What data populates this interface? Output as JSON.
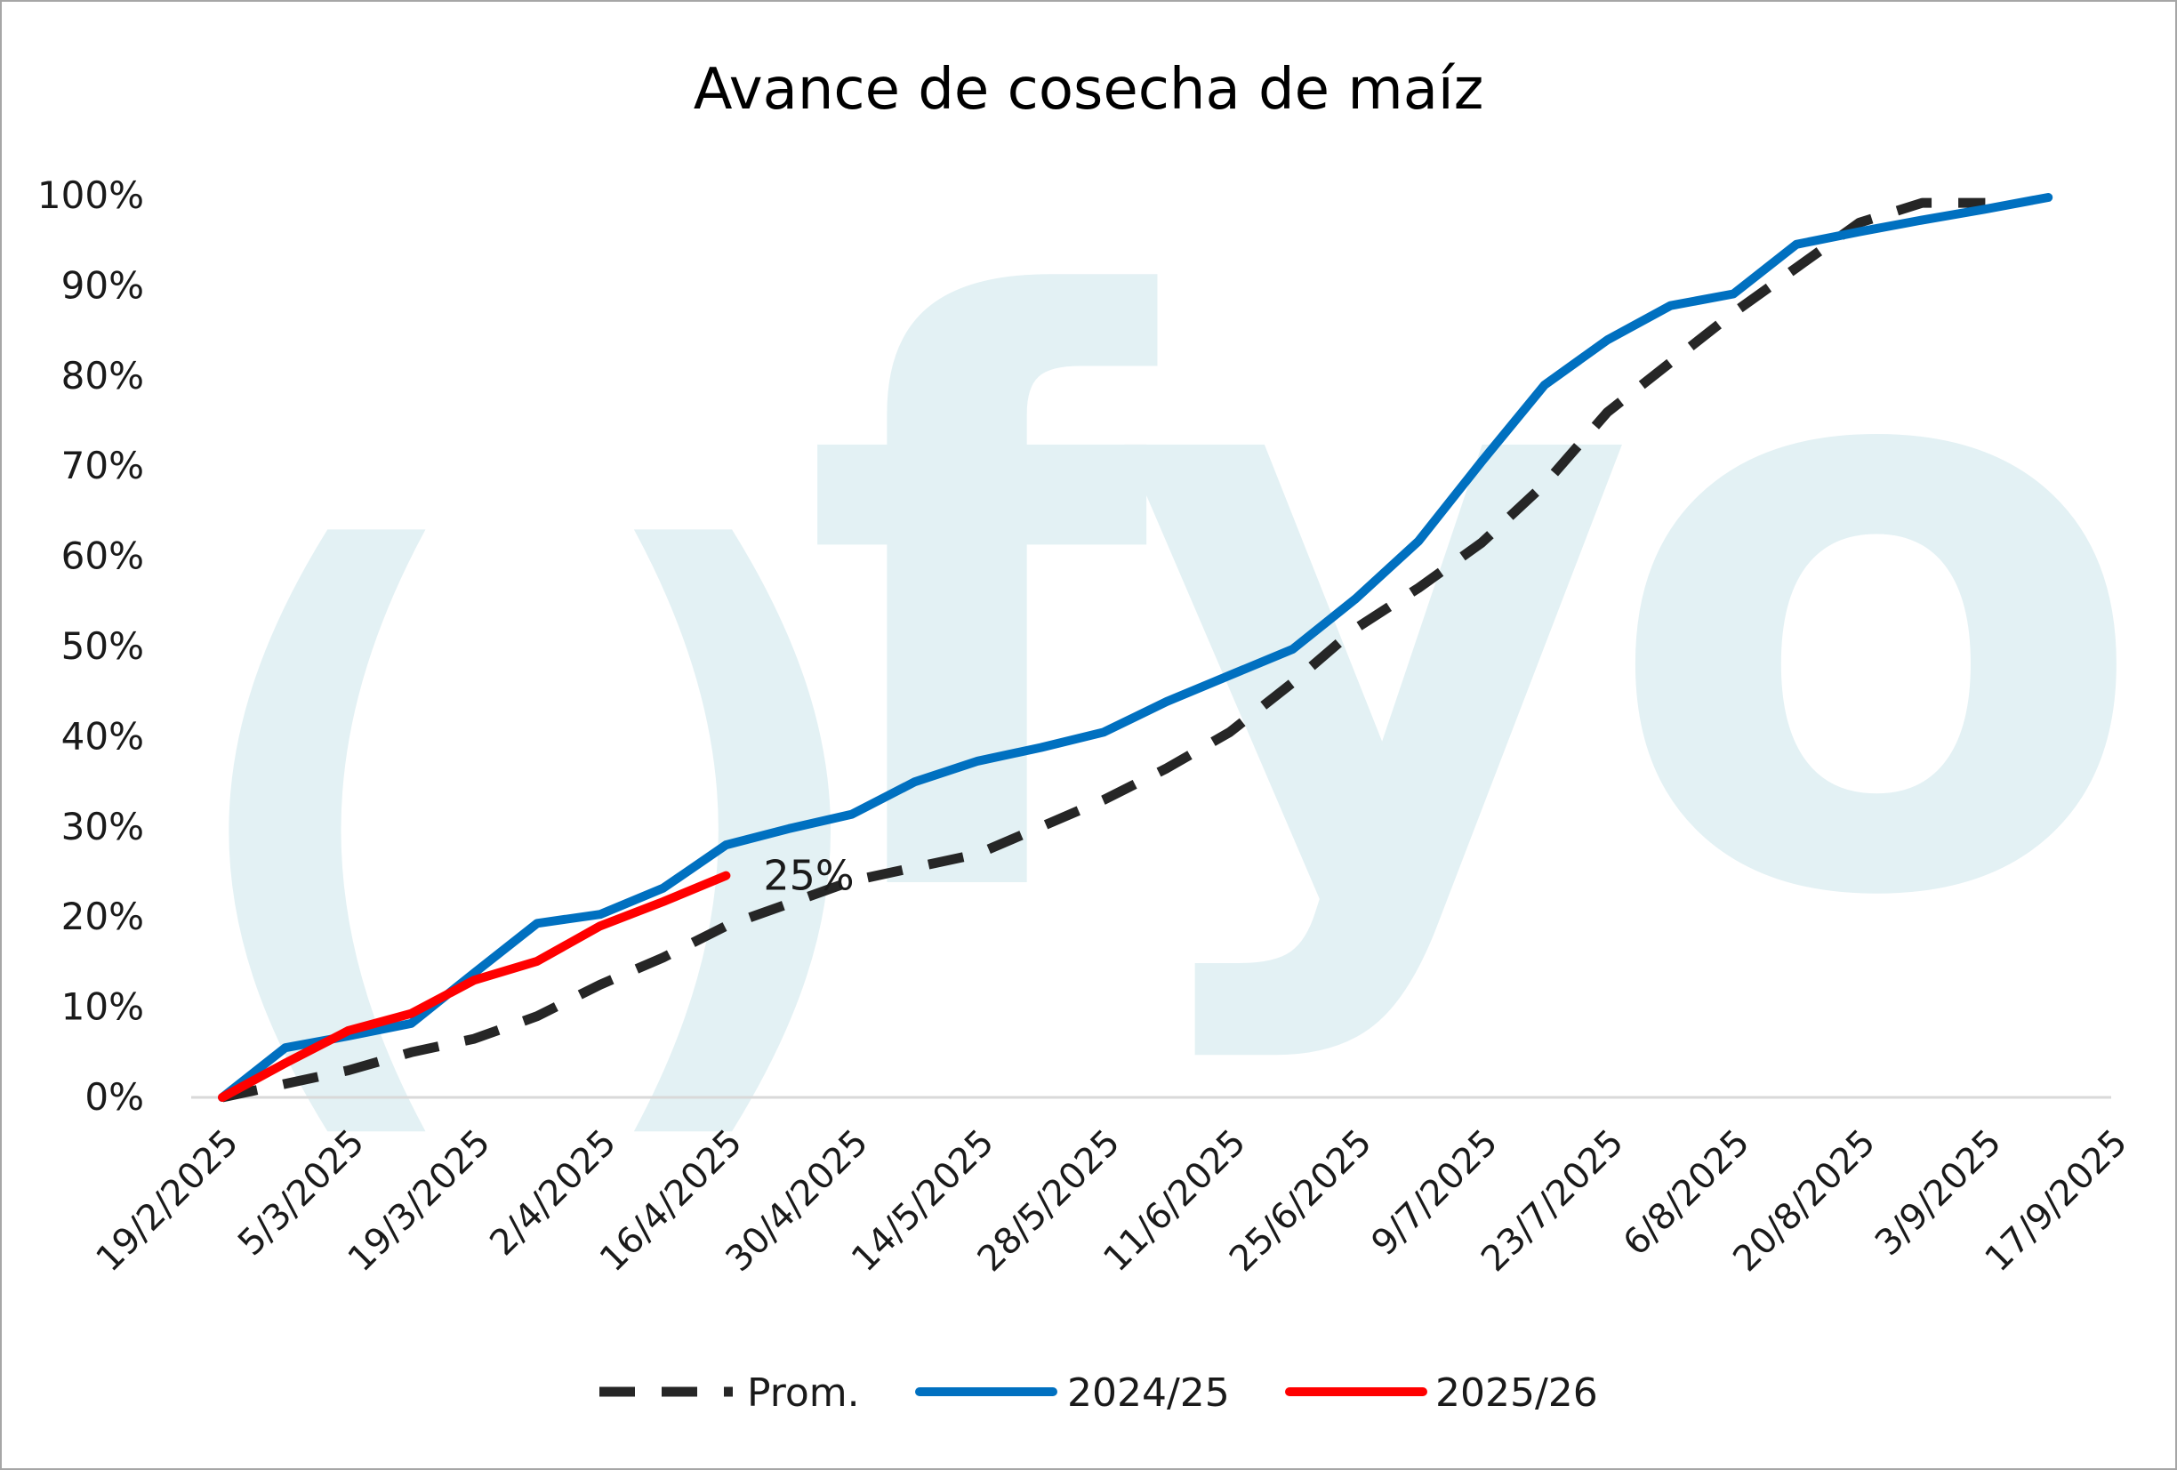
{
  "chart_data": {
    "type": "line",
    "title": "Avance de cosecha de maíz",
    "xlabel": "",
    "ylabel": "",
    "ylim": [
      0,
      100
    ],
    "yticks": [
      "0%",
      "10%",
      "20%",
      "30%",
      "40%",
      "50%",
      "60%",
      "70%",
      "80%",
      "90%",
      "100%"
    ],
    "xlim": [
      "2025-02-19",
      "2025-09-17"
    ],
    "xticks": [
      "19/2/2025",
      "5/3/2025",
      "19/3/2025",
      "2/4/2025",
      "16/4/2025",
      "30/4/2025",
      "14/5/2025",
      "28/5/2025",
      "11/6/2025",
      "25/6/2025",
      "9/7/2025",
      "23/7/2025",
      "6/8/2025",
      "20/8/2025",
      "3/9/2025",
      "17/9/2025"
    ],
    "grid": false,
    "legend_position": "bottom",
    "watermark": "fyo",
    "watermark_color": "#e3f1f4",
    "series": [
      {
        "name": "Prom.",
        "color": "#262626",
        "style": "dashed",
        "x": [
          "2025-02-19",
          "2025-02-26",
          "2025-03-05",
          "2025-03-12",
          "2025-03-19",
          "2025-03-26",
          "2025-04-02",
          "2025-04-09",
          "2025-04-16",
          "2025-04-23",
          "2025-04-30",
          "2025-05-07",
          "2025-05-14",
          "2025-05-21",
          "2025-05-28",
          "2025-06-04",
          "2025-06-11",
          "2025-06-18",
          "2025-06-25",
          "2025-07-02",
          "2025-07-09",
          "2025-07-16",
          "2025-07-23",
          "2025-07-30",
          "2025-08-06",
          "2025-08-13",
          "2025-08-20",
          "2025-08-27",
          "2025-09-03"
        ],
        "values": [
          0,
          1.5,
          3,
          5,
          6.5,
          9,
          12.5,
          15.5,
          19,
          21.5,
          24,
          25.5,
          27,
          30,
          33,
          36.5,
          40.5,
          46,
          52,
          56.5,
          61.5,
          68,
          76,
          81.5,
          87,
          92,
          97,
          99.2,
          99.2
        ]
      },
      {
        "name": "2024/25",
        "color": "#0070c0",
        "style": "solid",
        "x": [
          "2025-02-19",
          "2025-02-26",
          "2025-03-05",
          "2025-03-12",
          "2025-03-19",
          "2025-03-26",
          "2025-04-02",
          "2025-04-09",
          "2025-04-16",
          "2025-04-23",
          "2025-04-30",
          "2025-05-07",
          "2025-05-14",
          "2025-05-21",
          "2025-05-28",
          "2025-06-04",
          "2025-06-11",
          "2025-06-18",
          "2025-06-25",
          "2025-07-02",
          "2025-07-09",
          "2025-07-16",
          "2025-07-23",
          "2025-07-30",
          "2025-08-06",
          "2025-08-13",
          "2025-08-20",
          "2025-08-27",
          "2025-09-03",
          "2025-09-10"
        ],
        "values": [
          0,
          5.5,
          6.8,
          8.2,
          13.8,
          19.3,
          20.3,
          23.2,
          28,
          29.8,
          31.4,
          35,
          37.3,
          38.8,
          40.5,
          43.9,
          46.8,
          49.7,
          55.3,
          61.7,
          70.5,
          79,
          84,
          87.8,
          89.1,
          94.6,
          96,
          97.3,
          98.5,
          99.8
        ]
      },
      {
        "name": "2025/26",
        "color": "#ff0000",
        "style": "solid",
        "x": [
          "2025-02-19",
          "2025-02-26",
          "2025-03-05",
          "2025-03-12",
          "2025-03-19",
          "2025-03-26",
          "2025-04-02",
          "2025-04-09",
          "2025-04-16"
        ],
        "values": [
          0,
          3.8,
          7.4,
          9.3,
          13,
          15.1,
          19,
          21.7,
          24.6
        ]
      }
    ],
    "annotations": [
      {
        "text": "25%",
        "series": "2025/26",
        "x": "2025-04-16",
        "y": 24.6
      }
    ]
  }
}
